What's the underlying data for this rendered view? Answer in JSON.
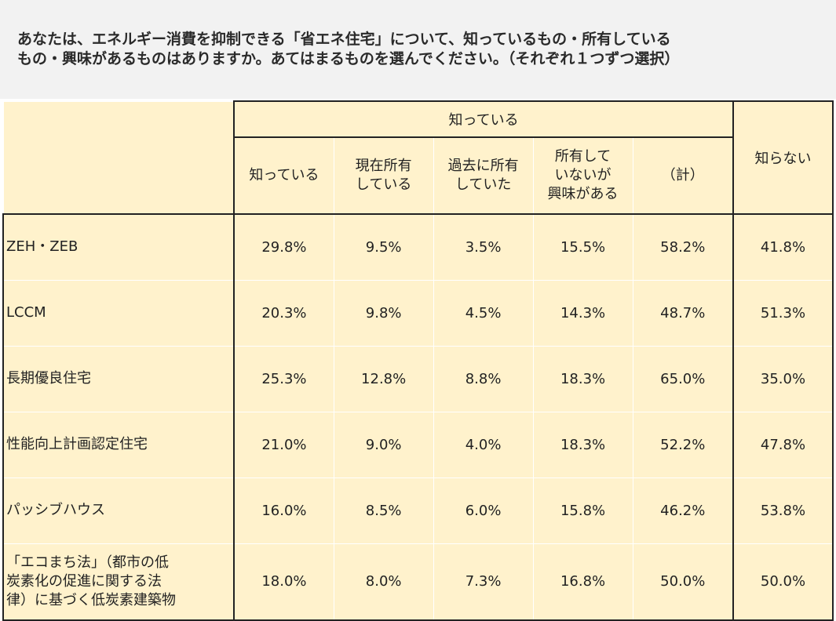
{
  "question": {
    "line1": "あなたは、エネルギー消費を抑制できる「省エネ住宅」について、知っているもの・所有している",
    "line2": "もの・興味があるものはありますか。あてはまるものを選んでください。（それぞれ１つずつ選択）"
  },
  "table": {
    "group_header": "知っている",
    "sub_headers": [
      [
        "知っている"
      ],
      [
        "現在所有",
        "している"
      ],
      [
        "過去に所有",
        "していた"
      ],
      [
        "所有して",
        "いないが",
        "興味がある"
      ],
      [
        "（計）"
      ]
    ],
    "unknown_header": "知らない",
    "rows": [
      {
        "label": [
          "ZEH・ZEB"
        ],
        "values": [
          "29.8%",
          "9.5%",
          "3.5%",
          "15.5%",
          "58.2%",
          "41.8%"
        ]
      },
      {
        "label": [
          "LCCM"
        ],
        "values": [
          "20.3%",
          "9.8%",
          "4.5%",
          "14.3%",
          "48.7%",
          "51.3%"
        ]
      },
      {
        "label": [
          "長期優良住宅"
        ],
        "values": [
          "25.3%",
          "12.8%",
          "8.8%",
          "18.3%",
          "65.0%",
          "35.0%"
        ]
      },
      {
        "label": [
          "性能向上計画認定住宅"
        ],
        "values": [
          "21.0%",
          "9.0%",
          "4.0%",
          "18.3%",
          "52.2%",
          "47.8%"
        ]
      },
      {
        "label": [
          "パッシブハウス"
        ],
        "values": [
          "16.0%",
          "8.5%",
          "6.0%",
          "15.8%",
          "46.2%",
          "53.8%"
        ]
      },
      {
        "label": [
          "「エコまち法」（都市の低",
          "炭素化の促進に関する法",
          "律）に基づく低炭素建築物"
        ],
        "values": [
          "18.0%",
          "8.0%",
          "7.3%",
          "16.8%",
          "50.0%",
          "50.0%"
        ]
      }
    ]
  },
  "colors": {
    "cell_fill": "#fff2cc",
    "question_bg": "#f2f2f2",
    "border": "#222222"
  }
}
